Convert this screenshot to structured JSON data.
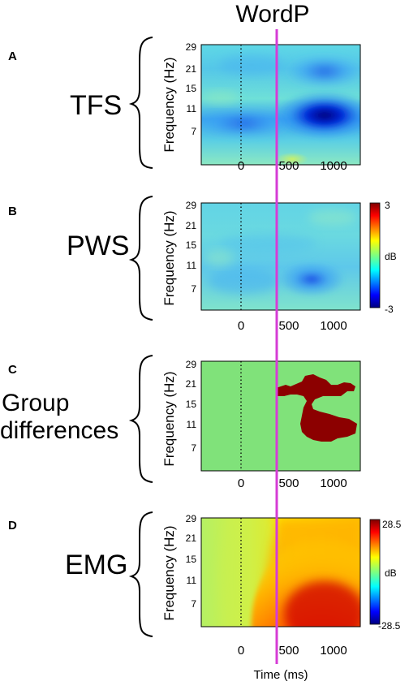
{
  "figure": {
    "event_label": "WordP",
    "event_line_color": "#d63cd6",
    "x_axis_label": "Time (ms)"
  },
  "chart_data": [
    {
      "type": "heatmap",
      "panel_letter": "A",
      "group_label": "TFS",
      "ylabel": "Frequency (Hz)",
      "xlabel": "",
      "x_ticks": [
        "0",
        "500",
        "1000"
      ],
      "y_ticks": [
        "29",
        "21",
        "15",
        "11",
        "7"
      ],
      "xlim": [
        -400,
        1300
      ],
      "ylim": [
        3,
        30
      ],
      "event_time_ms": 0,
      "description": "beta and alpha power decrease after ~400 ms",
      "colorbar": null
    },
    {
      "type": "heatmap",
      "panel_letter": "B",
      "group_label": "PWS",
      "ylabel": "Frequency (Hz)",
      "xlabel": "",
      "x_ticks": [
        "0",
        "500",
        "1000"
      ],
      "y_ticks": [
        "29",
        "21",
        "15",
        "11",
        "7"
      ],
      "xlim": [
        -400,
        1300
      ],
      "ylim": [
        3,
        30
      ],
      "event_time_ms": 0,
      "colorbar": {
        "max_label": "3",
        "unit_label": "dB",
        "min_label": "-3",
        "range": [
          -3,
          3
        ]
      }
    },
    {
      "type": "heatmap",
      "panel_letter": "C",
      "group_label_lines": [
        "Group",
        "differences"
      ],
      "ylabel": "Frequency (Hz)",
      "xlabel": "",
      "x_ticks": [
        "0",
        "500",
        "1000"
      ],
      "y_ticks": [
        "29",
        "21",
        "15",
        "11",
        "7"
      ],
      "xlim": [
        -400,
        1300
      ],
      "ylim": [
        3,
        30
      ],
      "event_time_ms": 0,
      "colorbar": null
    },
    {
      "type": "heatmap",
      "panel_letter": "D",
      "group_label": "EMG",
      "ylabel": "Frequency (Hz)",
      "xlabel": "Time (ms)",
      "x_ticks": [
        "0",
        "500",
        "1000"
      ],
      "y_ticks": [
        "29",
        "21",
        "15",
        "11",
        "7"
      ],
      "xlim": [
        -400,
        1300
      ],
      "ylim": [
        3,
        30
      ],
      "event_time_ms": 0,
      "colorbar": {
        "max_label": "28.5",
        "unit_label": "dB",
        "min_label": "-28.5",
        "range": [
          -28.5,
          28.5
        ]
      }
    }
  ]
}
